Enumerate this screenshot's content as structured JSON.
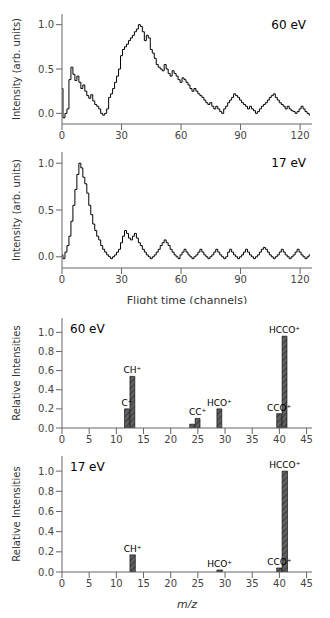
{
  "chart_data": [
    {
      "type": "step",
      "x": [
        0,
        1,
        2,
        3,
        4,
        5,
        6,
        7,
        8,
        9,
        10,
        11,
        12,
        13,
        14,
        15,
        16,
        17,
        18,
        19,
        20,
        21,
        22,
        23,
        24,
        25,
        26,
        27,
        28,
        29,
        30,
        31,
        32,
        33,
        34,
        35,
        36,
        37,
        38,
        39,
        40,
        41,
        42,
        43,
        44,
        45,
        46,
        47,
        48,
        49,
        50,
        51,
        52,
        53,
        54,
        55,
        56,
        57,
        58,
        59,
        60,
        61,
        62,
        63,
        64,
        65,
        66,
        67,
        68,
        69,
        70,
        71,
        72,
        73,
        74,
        75,
        76,
        77,
        78,
        79,
        80,
        81,
        82,
        83,
        84,
        85,
        86,
        87,
        88,
        89,
        90,
        91,
        92,
        93,
        94,
        95,
        96,
        97,
        98,
        99,
        100,
        101,
        102,
        103,
        104,
        105,
        106,
        107,
        108,
        109,
        110,
        111,
        112,
        113,
        114,
        115,
        116,
        117,
        118,
        119,
        120,
        121,
        122,
        123,
        124,
        125
      ],
      "values": [
        0.28,
        -0.05,
        0.0,
        0.05,
        0.38,
        0.52,
        0.44,
        0.37,
        0.42,
        0.35,
        0.28,
        0.32,
        0.25,
        0.2,
        0.17,
        0.21,
        0.14,
        0.1,
        0.08,
        0.05,
        0.0,
        -0.02,
        0.0,
        0.05,
        0.18,
        0.22,
        0.28,
        0.35,
        0.42,
        0.5,
        0.65,
        0.72,
        0.75,
        0.78,
        0.82,
        0.85,
        0.88,
        0.92,
        0.95,
        1.0,
        0.98,
        0.92,
        0.82,
        0.88,
        0.85,
        0.72,
        0.68,
        0.62,
        0.55,
        0.52,
        0.5,
        0.48,
        0.55,
        0.5,
        0.45,
        0.42,
        0.48,
        0.45,
        0.42,
        0.38,
        0.35,
        0.4,
        0.38,
        0.35,
        0.32,
        0.28,
        0.25,
        0.28,
        0.25,
        0.22,
        0.2,
        0.18,
        0.15,
        0.12,
        0.1,
        0.12,
        0.08,
        0.05,
        0.08,
        0.05,
        0.02,
        0.0,
        0.05,
        0.08,
        0.12,
        0.15,
        0.18,
        0.22,
        0.2,
        0.18,
        0.15,
        0.12,
        0.1,
        0.08,
        0.05,
        0.08,
        0.05,
        0.03,
        0.0,
        0.02,
        0.05,
        0.08,
        0.1,
        0.12,
        0.15,
        0.18,
        0.2,
        0.22,
        0.18,
        0.15,
        0.12,
        0.1,
        0.08,
        0.05,
        0.08,
        0.05,
        0.03,
        0.02,
        0.0,
        0.02,
        0.05,
        0.08,
        0.05,
        0.02,
        0.0,
        -0.02
      ],
      "color": "#000000",
      "xlim": [
        0,
        126
      ],
      "ylim": [
        -0.12,
        1.12
      ],
      "xticks": [
        0,
        30,
        60,
        90,
        120
      ],
      "yticks": [
        {
          "value": 0,
          "label": "0.0"
        },
        0.5,
        {
          "value": 1,
          "label": "1.0"
        }
      ],
      "ylabel": "Intensity (arb. units)",
      "annotations": [
        "60 eV"
      ],
      "grid": false
    },
    {
      "type": "step",
      "x": [
        0,
        1,
        2,
        3,
        4,
        5,
        6,
        7,
        8,
        9,
        10,
        11,
        12,
        13,
        14,
        15,
        16,
        17,
        18,
        19,
        20,
        21,
        22,
        23,
        24,
        25,
        26,
        27,
        28,
        29,
        30,
        31,
        32,
        33,
        34,
        35,
        36,
        37,
        38,
        39,
        40,
        41,
        42,
        43,
        44,
        45,
        46,
        47,
        48,
        49,
        50,
        51,
        52,
        53,
        54,
        55,
        56,
        57,
        58,
        59,
        60,
        61,
        62,
        63,
        64,
        65,
        66,
        67,
        68,
        69,
        70,
        71,
        72,
        73,
        74,
        75,
        76,
        77,
        78,
        79,
        80,
        81,
        82,
        83,
        84,
        85,
        86,
        87,
        88,
        89,
        90,
        91,
        92,
        93,
        94,
        95,
        96,
        97,
        98,
        99,
        100,
        101,
        102,
        103,
        104,
        105,
        106,
        107,
        108,
        109,
        110,
        111,
        112,
        113,
        114,
        115,
        116,
        117,
        118,
        119,
        120,
        121,
        122,
        123,
        124,
        125
      ],
      "values": [
        0.02,
        -0.02,
        0.05,
        0.12,
        0.22,
        0.38,
        0.55,
        0.72,
        0.88,
        1.0,
        0.95,
        0.85,
        0.78,
        0.68,
        0.55,
        0.45,
        0.35,
        0.28,
        0.22,
        0.18,
        0.12,
        0.08,
        0.05,
        0.02,
        0.0,
        -0.02,
        0.0,
        0.02,
        0.05,
        0.08,
        0.15,
        0.22,
        0.28,
        0.25,
        0.2,
        0.18,
        0.22,
        0.25,
        0.2,
        0.15,
        0.12,
        0.08,
        0.05,
        0.02,
        0.0,
        -0.02,
        0.0,
        0.02,
        0.05,
        0.08,
        0.12,
        0.15,
        0.18,
        0.15,
        0.12,
        0.08,
        0.05,
        0.02,
        0.0,
        -0.02,
        0.02,
        0.05,
        0.08,
        0.05,
        0.02,
        0.0,
        -0.02,
        0.0,
        0.02,
        0.05,
        0.08,
        0.05,
        0.02,
        0.0,
        -0.02,
        0.0,
        0.02,
        0.05,
        0.08,
        0.05,
        0.02,
        0.0,
        -0.02,
        0.0,
        0.05,
        0.08,
        0.05,
        0.02,
        0.0,
        -0.02,
        0.0,
        0.02,
        0.05,
        0.08,
        0.05,
        0.02,
        0.0,
        -0.02,
        0.0,
        0.02,
        0.05,
        0.08,
        0.1,
        0.08,
        0.05,
        0.02,
        0.0,
        -0.02,
        0.0,
        0.02,
        0.05,
        0.08,
        0.05,
        0.02,
        0.0,
        -0.02,
        0.0,
        0.02,
        0.05,
        0.08,
        0.05,
        0.02,
        0.0,
        -0.02,
        0.0,
        0.02
      ],
      "color": "#000000",
      "xlim": [
        0,
        126
      ],
      "ylim": [
        -0.12,
        1.12
      ],
      "xticks": [
        0,
        30,
        60,
        90,
        120
      ],
      "yticks": [
        {
          "value": 0,
          "label": "0.0"
        },
        0.5,
        {
          "value": 1,
          "label": "1.0"
        }
      ],
      "xlabel": "Flight time (channels)",
      "ylabel": "Intensity (arb. units)",
      "annotations": [
        "17 eV"
      ],
      "grid": false
    },
    {
      "type": "bar",
      "x": [
        12,
        13,
        24,
        25,
        29,
        40,
        41
      ],
      "values": [
        0.2,
        0.54,
        0.04,
        0.1,
        0.2,
        0.15,
        0.96
      ],
      "labels": [
        "C⁺",
        "CH⁺",
        null,
        "CC⁺",
        "HCO⁺",
        "CCO⁺",
        "HCCO⁺"
      ],
      "color": "#606060",
      "xlim": [
        0,
        46
      ],
      "ylim": [
        0.0,
        1.15
      ],
      "xticks": [
        0,
        5,
        10,
        15,
        20,
        25,
        30,
        35,
        40,
        45
      ],
      "yticks": [
        {
          "value": 0,
          "label": "0.0"
        },
        0.2,
        0.4,
        0.6,
        0.8,
        {
          "value": 1,
          "label": "1.0"
        }
      ],
      "ylabel": "Relative Intensities",
      "annotations": [
        "60 eV"
      ],
      "grid": false
    },
    {
      "type": "bar",
      "x": [
        13,
        29,
        40,
        41
      ],
      "values": [
        0.17,
        0.02,
        0.04,
        1.0
      ],
      "labels": [
        "CH⁺",
        "HCO⁺",
        "CCO⁺",
        "HCCO⁺"
      ],
      "color": "#606060",
      "xlim": [
        0,
        46
      ],
      "ylim": [
        0.0,
        1.15
      ],
      "xticks": [
        0,
        5,
        10,
        15,
        20,
        25,
        30,
        35,
        40,
        45
      ],
      "yticks": [
        {
          "value": 0,
          "label": "0.0"
        },
        0.2,
        0.4,
        0.6,
        0.8,
        {
          "value": 1,
          "label": "1.0"
        }
      ],
      "xlabel": "m/z",
      "ylabel": "Relative Intensities",
      "annotations": [
        "17 eV"
      ],
      "grid": false
    }
  ]
}
